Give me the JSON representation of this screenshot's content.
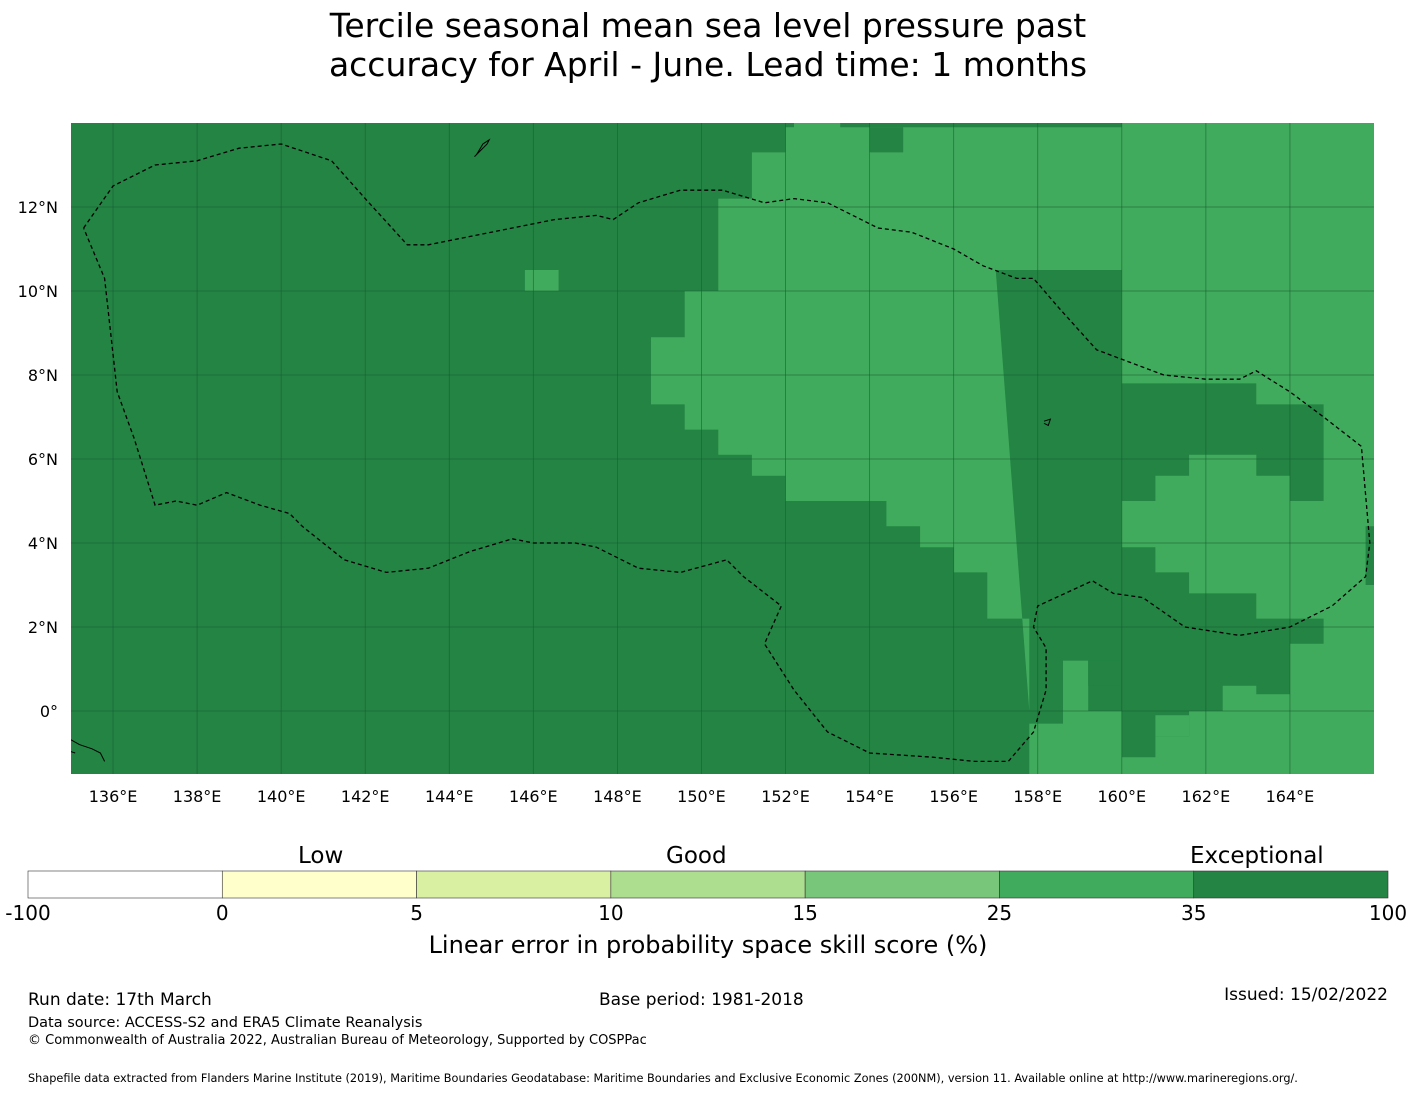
{
  "title": {
    "line1": "Tercile seasonal mean sea level pressure past",
    "line2": "accuracy for April - June. Lead time: 1 months"
  },
  "map": {
    "lon_range": [
      135,
      166
    ],
    "lat_range": [
      -1.5,
      14
    ],
    "grid_step_degrees": 0.833,
    "colors": {
      "exceptional": "#238443",
      "good_high": "#41ab5d",
      "gridline": "#1a5c30",
      "eez_border": "#000000",
      "land": "#000000"
    },
    "lon_ticks": [
      "136°E",
      "138°E",
      "140°E",
      "142°E",
      "144°E",
      "146°E",
      "148°E",
      "150°E",
      "152°E",
      "154°E",
      "156°E",
      "158°E",
      "160°E",
      "162°E",
      "164°E"
    ],
    "lat_ticks": [
      "12°N",
      "10°N",
      "8°N",
      "6°N",
      "4°N",
      "2°N",
      "0°"
    ],
    "lon_tick_values": [
      136,
      138,
      140,
      142,
      144,
      146,
      148,
      150,
      152,
      154,
      156,
      158,
      160,
      162,
      164
    ],
    "lat_tick_values": [
      12,
      10,
      8,
      6,
      4,
      2,
      0
    ],
    "lighter_region_lonlat": [
      [
        152.2,
        14
      ],
      [
        166,
        14
      ],
      [
        166,
        4.4
      ],
      [
        165.8,
        4.4
      ],
      [
        165.8,
        3.0
      ],
      [
        166,
        3.0
      ],
      [
        166,
        -1.5
      ],
      [
        157.8,
        -1.5
      ],
      [
        157.8,
        -0.3
      ],
      [
        158.6,
        -0.3
      ],
      [
        158.6,
        1.2
      ],
      [
        159.2,
        1.2
      ],
      [
        159.2,
        0
      ],
      [
        160,
        0
      ],
      [
        160,
        -1.1
      ],
      [
        160.8,
        -1.1
      ],
      [
        160.8,
        -0.6
      ],
      [
        161.6,
        -0.6
      ],
      [
        161.6,
        0
      ],
      [
        162.4,
        0
      ],
      [
        162.4,
        0.6
      ],
      [
        163.2,
        0.6
      ],
      [
        163.2,
        0.4
      ],
      [
        164,
        0.4
      ],
      [
        164,
        1.6
      ],
      [
        164.8,
        1.6
      ],
      [
        164.8,
        2.2
      ],
      [
        163.2,
        2.2
      ],
      [
        163.2,
        2.8
      ],
      [
        161.6,
        2.8
      ],
      [
        161.6,
        3.3
      ],
      [
        160.8,
        3.3
      ],
      [
        160.8,
        3.9
      ],
      [
        160,
        3.9
      ],
      [
        160,
        5.0
      ],
      [
        160.8,
        5.0
      ],
      [
        160.8,
        5.6
      ],
      [
        161.6,
        5.6
      ],
      [
        161.6,
        6.1
      ],
      [
        163.2,
        6.1
      ],
      [
        163.2,
        5.6
      ],
      [
        164,
        5.6
      ],
      [
        164,
        5.0
      ],
      [
        164.8,
        5.0
      ],
      [
        164.8,
        7.3
      ],
      [
        163.2,
        7.3
      ],
      [
        163.2,
        7.8
      ],
      [
        160,
        7.8
      ],
      [
        160,
        10.5
      ],
      [
        157,
        10.5
      ],
      [
        157.8,
        0
      ],
      [
        157.8,
        0
      ],
      [
        157.8,
        1.1
      ],
      [
        157.8,
        2.2
      ],
      [
        156.8,
        2.2
      ],
      [
        156.8,
        3.3
      ],
      [
        156,
        3.3
      ],
      [
        156,
        3.9
      ],
      [
        155.2,
        3.9
      ],
      [
        155.2,
        4.4
      ],
      [
        154.4,
        4.4
      ],
      [
        154.4,
        5.0
      ],
      [
        153.6,
        5.0
      ],
      [
        152.8,
        5.0
      ],
      [
        152.8,
        5.0
      ],
      [
        152.0,
        5.0
      ],
      [
        152.0,
        5.6
      ],
      [
        151.2,
        5.6
      ],
      [
        151.2,
        6.1
      ],
      [
        150.4,
        6.1
      ],
      [
        150.4,
        6.7
      ],
      [
        149.6,
        6.7
      ],
      [
        149.6,
        7.3
      ],
      [
        148.8,
        7.3
      ],
      [
        148.8,
        8.9
      ],
      [
        149.6,
        8.9
      ],
      [
        149.6,
        10.0
      ],
      [
        150.4,
        10.0
      ],
      [
        150.4,
        12.2
      ],
      [
        151.2,
        12.2
      ],
      [
        151.2,
        13.3
      ],
      [
        152.0,
        13.3
      ],
      [
        152.0,
        13.9
      ],
      [
        152.2,
        13.9
      ]
    ],
    "darker_patches_lonlat": [
      [
        [
          154.0,
          13.9
        ],
        [
          154.8,
          13.9
        ],
        [
          154.8,
          13.3
        ],
        [
          154.0,
          13.3
        ]
      ],
      [
        [
          153.3,
          14
        ],
        [
          160,
          14
        ],
        [
          160,
          13.9
        ],
        [
          153.3,
          13.9
        ]
      ],
      [
        [
          159.2,
          1.2
        ],
        [
          160,
          1.2
        ],
        [
          160,
          0.6
        ],
        [
          159.2,
          0.6
        ]
      ]
    ],
    "lighter_patches_lonlat": [
      [
        [
          145.8,
          10.5
        ],
        [
          146.6,
          10.5
        ],
        [
          146.6,
          10.0
        ],
        [
          145.8,
          10.0
        ]
      ],
      [
        [
          160.8,
          -0.1
        ],
        [
          161.6,
          -0.1
        ],
        [
          161.6,
          -0.6
        ],
        [
          160.8,
          -0.6
        ]
      ]
    ],
    "eez_border_lonlat": [
      [
        135.3,
        11.5
      ],
      [
        136,
        12.5
      ],
      [
        137,
        13
      ],
      [
        138,
        13.1
      ],
      [
        139,
        13.4
      ],
      [
        140,
        13.5
      ],
      [
        141.2,
        13.1
      ],
      [
        142,
        12.2
      ],
      [
        143,
        11.1
      ],
      [
        143.5,
        11.1
      ],
      [
        144.5,
        11.3
      ],
      [
        145.5,
        11.5
      ],
      [
        146.5,
        11.7
      ],
      [
        147.5,
        11.8
      ],
      [
        147.9,
        11.7
      ],
      [
        148.5,
        12.1
      ],
      [
        149.5,
        12.4
      ],
      [
        150.5,
        12.4
      ],
      [
        151.5,
        12.1
      ],
      [
        152.2,
        12.2
      ],
      [
        153,
        12.1
      ],
      [
        154.2,
        11.5
      ],
      [
        155,
        11.4
      ],
      [
        156,
        11
      ],
      [
        156.7,
        10.6
      ],
      [
        157.5,
        10.3
      ],
      [
        157.9,
        10.3
      ],
      [
        158.5,
        9.6
      ],
      [
        159.4,
        8.6
      ],
      [
        160.2,
        8.3
      ],
      [
        161,
        8
      ],
      [
        162,
        7.9
      ],
      [
        162.8,
        7.9
      ],
      [
        163.2,
        8.1
      ],
      [
        164,
        7.6
      ],
      [
        164.8,
        7
      ],
      [
        165.7,
        6.3
      ],
      [
        165.9,
        4
      ],
      [
        165.8,
        3.2
      ],
      [
        165,
        2.5
      ],
      [
        164,
        2
      ],
      [
        162.8,
        1.8
      ],
      [
        161.5,
        2
      ],
      [
        160.5,
        2.7
      ],
      [
        159.8,
        2.8
      ],
      [
        159.3,
        3.1
      ],
      [
        158,
        2.5
      ],
      [
        157.9,
        2
      ],
      [
        158.2,
        1.5
      ],
      [
        158.2,
        0.5
      ],
      [
        157.9,
        -0.5
      ],
      [
        157.3,
        -1.2
      ],
      [
        156.5,
        -1.2
      ],
      [
        155.5,
        -1.1
      ],
      [
        154,
        -1
      ],
      [
        153,
        -0.5
      ],
      [
        152.2,
        0.5
      ],
      [
        151.5,
        1.6
      ],
      [
        151.9,
        2.5
      ],
      [
        151,
        3.2
      ],
      [
        150.6,
        3.6
      ],
      [
        149.5,
        3.3
      ],
      [
        148.5,
        3.4
      ],
      [
        147.5,
        3.9
      ],
      [
        147,
        4.0
      ],
      [
        146,
        4.0
      ],
      [
        145.5,
        4.1
      ],
      [
        144.5,
        3.8
      ],
      [
        143.5,
        3.4
      ],
      [
        142.5,
        3.3
      ],
      [
        141.5,
        3.6
      ],
      [
        140.5,
        4.4
      ],
      [
        140.2,
        4.7
      ],
      [
        139.5,
        4.9
      ],
      [
        138.7,
        5.2
      ],
      [
        138,
        4.9
      ],
      [
        137.5,
        5.0
      ],
      [
        137,
        4.9
      ],
      [
        136.5,
        6.5
      ],
      [
        136.1,
        7.6
      ],
      [
        135.8,
        10.3
      ],
      [
        135.3,
        11.5
      ]
    ],
    "land_features_lonlat": [
      [
        [
          144.6,
          13.2
        ],
        [
          144.9,
          13.5
        ],
        [
          144.95,
          13.6
        ],
        [
          144.8,
          13.5
        ],
        [
          144.65,
          13.25
        ]
      ],
      [
        [
          134.5,
          -0.4
        ],
        [
          135.2,
          -0.8
        ],
        [
          135.5,
          -0.9
        ],
        [
          135.7,
          -1.0
        ],
        [
          135.8,
          -1.2
        ]
      ],
      [
        [
          134.6,
          -0.8
        ],
        [
          134.8,
          -0.9
        ],
        [
          135.1,
          -1.0
        ]
      ],
      [
        [
          158.15,
          6.9
        ],
        [
          158.3,
          6.95
        ],
        [
          158.25,
          6.8
        ],
        [
          158.15,
          6.85
        ]
      ]
    ]
  },
  "legend": {
    "categories": {
      "low": "Low",
      "good": "Good",
      "exceptional": "Exceptional"
    },
    "bins": [
      {
        "from": "-100",
        "to": "0",
        "color": "#ffffff"
      },
      {
        "from": "0",
        "to": "5",
        "color": "#ffffcc"
      },
      {
        "from": "5",
        "to": "10",
        "color": "#d9f0a3"
      },
      {
        "from": "10",
        "to": "15",
        "color": "#addd8e"
      },
      {
        "from": "15",
        "to": "25",
        "color": "#78c679"
      },
      {
        "from": "25",
        "to": "35",
        "color": "#41ab5d"
      },
      {
        "from": "35",
        "to": "100",
        "color": "#238443"
      }
    ],
    "tick_labels": [
      "-100",
      "0",
      "5",
      "10",
      "15",
      "25",
      "35",
      "100"
    ],
    "title": "Linear error in probability space skill score (%)"
  },
  "footer": {
    "run_date": "Run date: 17th March",
    "base_period": "Base period: 1981-2018",
    "issued": "Issued: 15/02/2022",
    "data_source": "Data source: ACCESS-S2 and ERA5 Climate Reanalysis",
    "copyright": "© Commonwealth of Australia 2022, Australian Bureau of Meteorology, Supported by COSPPac",
    "shapefile": "Shapefile data extracted from Flanders Marine Institute (2019), Maritime Boundaries Geodatabase: Maritime Boundaries and Exclusive Economic Zones (200NM), version 11. Available online at http://www.marineregions.org/."
  }
}
